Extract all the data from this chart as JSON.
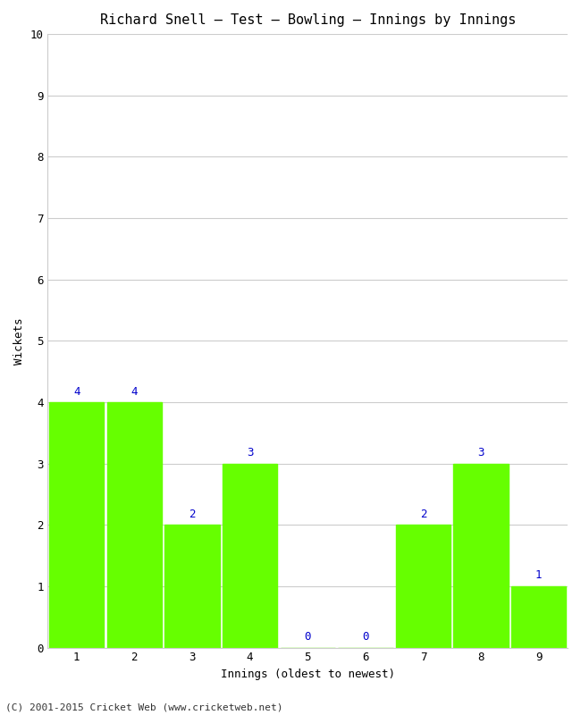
{
  "title": "Richard Snell – Test – Bowling – Innings by Innings",
  "xlabel": "Innings (oldest to newest)",
  "ylabel": "Wickets",
  "categories": [
    1,
    2,
    3,
    4,
    5,
    6,
    7,
    8,
    9
  ],
  "values": [
    4,
    4,
    2,
    3,
    0,
    0,
    2,
    3,
    1
  ],
  "bar_color": "#66ff00",
  "label_color": "#0000cc",
  "ylim": [
    0,
    10
  ],
  "yticks": [
    0,
    1,
    2,
    3,
    4,
    5,
    6,
    7,
    8,
    9,
    10
  ],
  "background_color": "#ffffff",
  "grid_color": "#cccccc",
  "title_fontsize": 11,
  "axis_label_fontsize": 9,
  "tick_fontsize": 9,
  "annotation_fontsize": 9,
  "footer": "(C) 2001-2015 Cricket Web (www.cricketweb.net)",
  "footer_fontsize": 8
}
